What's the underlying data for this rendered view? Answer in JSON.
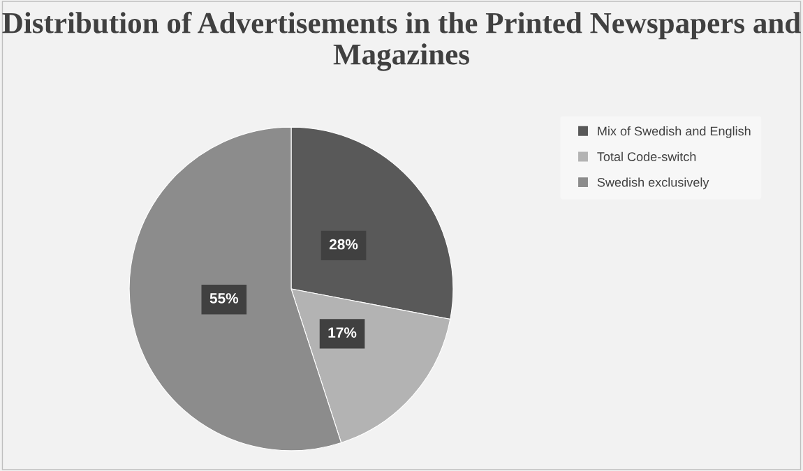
{
  "chart_data": {
    "type": "pie",
    "title": "Distribution of Advertisements in the Printed Newspapers and Magazines",
    "categories": [
      "Mix of Swedish and English",
      "Total Code-switch",
      "Swedish exclusively"
    ],
    "values": [
      28,
      17,
      55
    ],
    "colors": [
      "#595959",
      "#b3b3b3",
      "#8c8c8c"
    ],
    "value_labels": [
      "28%",
      "17%",
      "55%"
    ],
    "legend": "right"
  }
}
